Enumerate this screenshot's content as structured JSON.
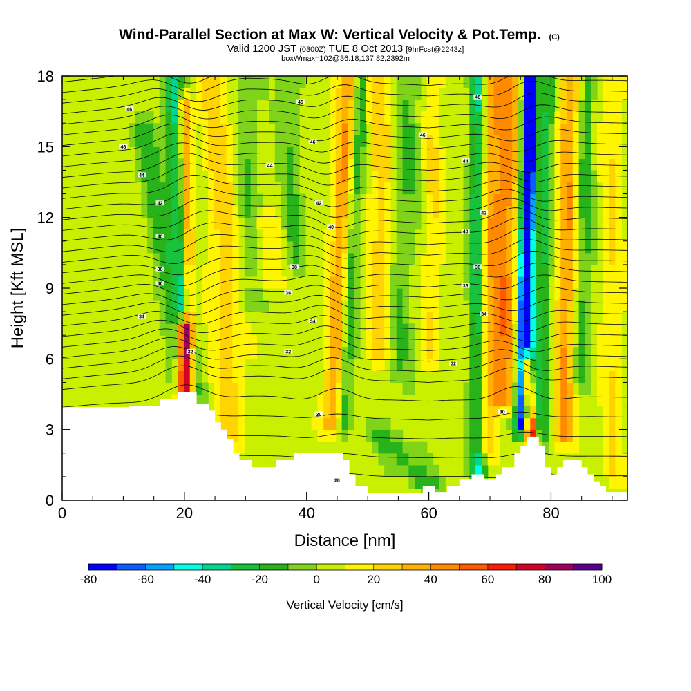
{
  "title": {
    "main": "Wind-Parallel Section at Max W: Vertical Velocity & Pot.Temp.",
    "main_suffix": "(C)",
    "line2_a": "Valid 1200 JST",
    "line2_b": "(0300Z)",
    "line2_c": "TUE 8 Oct 2013",
    "line2_d": "[9hrFcst@2243z]",
    "line3": "boxWmax=102@36.18,137.82,2392m"
  },
  "chart_data": {
    "type": "heatmap",
    "xlabel": "Distance [nm]",
    "ylabel": "Height [Kft MSL]",
    "xlim": [
      0,
      92.5
    ],
    "ylim": [
      0,
      18
    ],
    "xticks": [
      "0",
      "20",
      "40",
      "60",
      "80"
    ],
    "xtick_values": [
      0,
      20,
      40,
      60,
      80
    ],
    "yticks": [
      "0",
      "3",
      "6",
      "9",
      "12",
      "15",
      "18"
    ],
    "ytick_values": [
      0,
      3,
      6,
      9,
      12,
      15,
      18
    ],
    "colorbar": {
      "title": "Vertical Velocity [cm/s]",
      "levels": [
        -80,
        -70,
        -60,
        -50,
        -40,
        -30,
        -20,
        -10,
        0,
        10,
        20,
        30,
        40,
        50,
        60,
        70,
        80,
        90,
        100
      ],
      "tick_labels": [
        "-80",
        "-60",
        "-40",
        "-20",
        "0",
        "20",
        "40",
        "60",
        "80",
        "100"
      ],
      "tick_values": [
        -80,
        -60,
        -40,
        -20,
        0,
        20,
        40,
        60,
        80,
        100
      ],
      "colors": [
        "#0000ff",
        "#0a5eff",
        "#00a2ff",
        "#00ffe6",
        "#00d690",
        "#18c23c",
        "#28b31a",
        "#7fd41a",
        "#c8f000",
        "#fff500",
        "#ffd400",
        "#ffb000",
        "#ff8a00",
        "#ff5a00",
        "#ff1a00",
        "#d40026",
        "#a0005a",
        "#5a008c"
      ]
    },
    "terrain": [
      [
        0,
        3.95
      ],
      [
        10,
        3.95
      ],
      [
        11,
        3.95
      ],
      [
        11,
        4.0
      ],
      [
        16,
        4.0
      ],
      [
        16,
        4.3
      ],
      [
        19,
        4.3
      ],
      [
        19,
        4.6
      ],
      [
        22,
        4.6
      ],
      [
        22,
        4.1
      ],
      [
        24,
        4.1
      ],
      [
        24,
        3.8
      ],
      [
        25,
        3.8
      ],
      [
        25,
        3.3
      ],
      [
        26,
        3.3
      ],
      [
        26,
        3.0
      ],
      [
        27,
        3.0
      ],
      [
        27,
        2.6
      ],
      [
        28,
        2.6
      ],
      [
        28,
        2.0
      ],
      [
        29,
        2.0
      ],
      [
        29,
        1.7
      ],
      [
        31,
        1.7
      ],
      [
        31,
        1.4
      ],
      [
        35,
        1.4
      ],
      [
        35,
        1.7
      ],
      [
        38,
        1.7
      ],
      [
        38,
        2.0
      ],
      [
        46,
        2.0
      ],
      [
        46,
        1.7
      ],
      [
        47,
        1.7
      ],
      [
        47,
        1.1
      ],
      [
        48,
        1.1
      ],
      [
        48,
        0.6
      ],
      [
        50,
        0.6
      ],
      [
        50,
        0.3
      ],
      [
        59,
        0.3
      ],
      [
        59,
        0.6
      ],
      [
        61,
        0.6
      ],
      [
        61,
        0.35
      ],
      [
        63,
        0.35
      ],
      [
        63,
        0.6
      ],
      [
        65,
        0.6
      ],
      [
        65,
        0.9
      ],
      [
        67,
        0.9
      ],
      [
        67,
        1.1
      ],
      [
        69,
        1.1
      ],
      [
        69,
        0.9
      ],
      [
        71,
        0.9
      ],
      [
        71,
        1.1
      ],
      [
        72,
        1.1
      ],
      [
        72,
        1.4
      ],
      [
        74,
        1.4
      ],
      [
        74,
        2.0
      ],
      [
        75,
        2.0
      ],
      [
        75,
        2.3
      ],
      [
        76,
        2.3
      ],
      [
        76,
        2.7
      ],
      [
        78,
        2.7
      ],
      [
        78,
        2.3
      ],
      [
        79,
        2.3
      ],
      [
        79,
        1.4
      ],
      [
        80,
        1.4
      ],
      [
        80,
        1.1
      ],
      [
        81,
        1.1
      ],
      [
        81,
        1.4
      ],
      [
        82,
        1.4
      ],
      [
        82,
        1.7
      ],
      [
        85,
        1.7
      ],
      [
        85,
        1.4
      ],
      [
        86,
        1.4
      ],
      [
        86,
        1.1
      ],
      [
        87,
        1.1
      ],
      [
        87,
        0.8
      ],
      [
        88,
        0.8
      ],
      [
        88,
        0.6
      ],
      [
        89,
        0.6
      ],
      [
        89,
        0.35
      ],
      [
        92.5,
        0.35
      ]
    ],
    "w_features": [
      {
        "x0": 13,
        "y0": 16,
        "x1": 20,
        "y1": 4.5,
        "w": 2.2,
        "v": -20
      },
      {
        "x0": 18,
        "y0": 18,
        "x1": 21,
        "y1": 4.0,
        "w": 1.6,
        "v": -40
      },
      {
        "x0": 20,
        "y0": 17,
        "x1": 21,
        "y1": 4.0,
        "w": 1.0,
        "v": 50
      },
      {
        "x0": 20,
        "y0": 7.5,
        "x1": 20,
        "y1": 4.0,
        "w": 1.2,
        "v": 100
      },
      {
        "x0": 25,
        "y0": 18,
        "x1": 28,
        "y1": 2.5,
        "w": 2.5,
        "v": 20
      },
      {
        "x0": 30,
        "y0": 18,
        "x1": 31,
        "y1": 8,
        "w": 2.0,
        "v": -15
      },
      {
        "x0": 33,
        "y0": 12,
        "x1": 33,
        "y1": 9,
        "w": 2.5,
        "v": 15
      },
      {
        "x0": 37,
        "y0": 18,
        "x1": 38,
        "y1": 10,
        "w": 1.8,
        "v": -15
      },
      {
        "x0": 47,
        "y0": 18,
        "x1": 44,
        "y1": 3.0,
        "w": 1.6,
        "v": 35
      },
      {
        "x0": 49,
        "y0": 18,
        "x1": 46,
        "y1": 3.0,
        "w": 1.2,
        "v": -25
      },
      {
        "x0": 52,
        "y0": 18,
        "x1": 52,
        "y1": 6.0,
        "w": 2.0,
        "v": 20
      },
      {
        "x0": 57,
        "y0": 18,
        "x1": 55,
        "y1": 5.0,
        "w": 2.0,
        "v": -15
      },
      {
        "x0": 52,
        "y0": 3,
        "x1": 60,
        "y1": 0.5,
        "w": 3.0,
        "v": -20
      },
      {
        "x0": 61,
        "y0": 18,
        "x1": 60,
        "y1": 6.0,
        "w": 1.6,
        "v": 15
      },
      {
        "x0": 68,
        "y0": 18,
        "x1": 68,
        "y1": 1.0,
        "w": 1.4,
        "v": -45
      },
      {
        "x0": 70,
        "y0": 18,
        "x1": 69,
        "y1": 2.0,
        "w": 1.8,
        "v": 30
      },
      {
        "x0": 73,
        "y0": 18,
        "x1": 72,
        "y1": 4.0,
        "w": 2.0,
        "v": 40
      },
      {
        "x0": 76.5,
        "y0": 18,
        "x1": 75,
        "y1": 3.0,
        "w": 1.0,
        "v": -80
      },
      {
        "x0": 77,
        "y0": 18,
        "x1": 76.5,
        "y1": 3.5,
        "w": 0.8,
        "v": -45
      },
      {
        "x0": 76,
        "y0": 6,
        "x1": 77,
        "y1": 2.5,
        "w": 0.9,
        "v": 80
      },
      {
        "x0": 79.5,
        "y0": 18,
        "x1": 78,
        "y1": 2.5,
        "w": 1.2,
        "v": -30
      },
      {
        "x0": 83,
        "y0": 18,
        "x1": 82,
        "y1": 2.5,
        "w": 1.5,
        "v": 35
      },
      {
        "x0": 86,
        "y0": 18,
        "x1": 85,
        "y1": 5.0,
        "w": 1.2,
        "v": -20
      },
      {
        "x0": 90,
        "y0": 18,
        "x1": 90,
        "y1": 1.0,
        "w": 1.6,
        "v": 15
      }
    ],
    "theta_contours": [
      {
        "value": 28,
        "label": "28",
        "x": 45,
        "y": 0.85
      },
      {
        "value": 30,
        "label": "30",
        "x": 42,
        "y": 3.65
      },
      {
        "value": 30,
        "label": "30",
        "x": 72,
        "y": 3.75
      },
      {
        "value": 32,
        "label": "32",
        "x": 21,
        "y": 6.3
      },
      {
        "value": 32,
        "label": "32",
        "x": 37,
        "y": 6.3
      },
      {
        "value": 32,
        "label": "32",
        "x": 64,
        "y": 5.8
      },
      {
        "value": 34,
        "label": "34",
        "x": 13,
        "y": 7.8
      },
      {
        "value": 34,
        "label": "34",
        "x": 41,
        "y": 7.6
      },
      {
        "value": 34,
        "label": "34",
        "x": 69,
        "y": 7.9
      },
      {
        "value": 36,
        "label": "36",
        "x": 16,
        "y": 9.2
      },
      {
        "value": 36,
        "label": "36",
        "x": 37,
        "y": 8.8
      },
      {
        "value": 36,
        "label": "36",
        "x": 66,
        "y": 9.1
      },
      {
        "value": 38,
        "label": "38",
        "x": 16,
        "y": 9.8
      },
      {
        "value": 38,
        "label": "38",
        "x": 38,
        "y": 9.9
      },
      {
        "value": 38,
        "label": "38",
        "x": 68,
        "y": 9.9
      },
      {
        "value": 40,
        "label": "40",
        "x": 16,
        "y": 11.2
      },
      {
        "value": 40,
        "label": "40",
        "x": 44,
        "y": 11.6
      },
      {
        "value": 40,
        "label": "40",
        "x": 66,
        "y": 11.4
      },
      {
        "value": 42,
        "label": "42",
        "x": 16,
        "y": 12.6
      },
      {
        "value": 42,
        "label": "42",
        "x": 42,
        "y": 12.6
      },
      {
        "value": 42,
        "label": "42",
        "x": 69,
        "y": 12.2
      },
      {
        "value": 44,
        "label": "44",
        "x": 13,
        "y": 13.8
      },
      {
        "value": 44,
        "label": "44",
        "x": 34,
        "y": 14.2
      },
      {
        "value": 44,
        "label": "44",
        "x": 66,
        "y": 14.4
      },
      {
        "value": 46,
        "label": "46",
        "x": 10,
        "y": 15.0
      },
      {
        "value": 46,
        "label": "46",
        "x": 41,
        "y": 15.2
      },
      {
        "value": 46,
        "label": "46",
        "x": 59,
        "y": 15.5
      },
      {
        "value": 46,
        "label": "46",
        "x": 11,
        "y": 16.6
      },
      {
        "value": 46,
        "label": "46",
        "x": 39,
        "y": 16.9
      },
      {
        "value": 46,
        "label": "46",
        "x": 68,
        "y": 17.1
      }
    ]
  }
}
